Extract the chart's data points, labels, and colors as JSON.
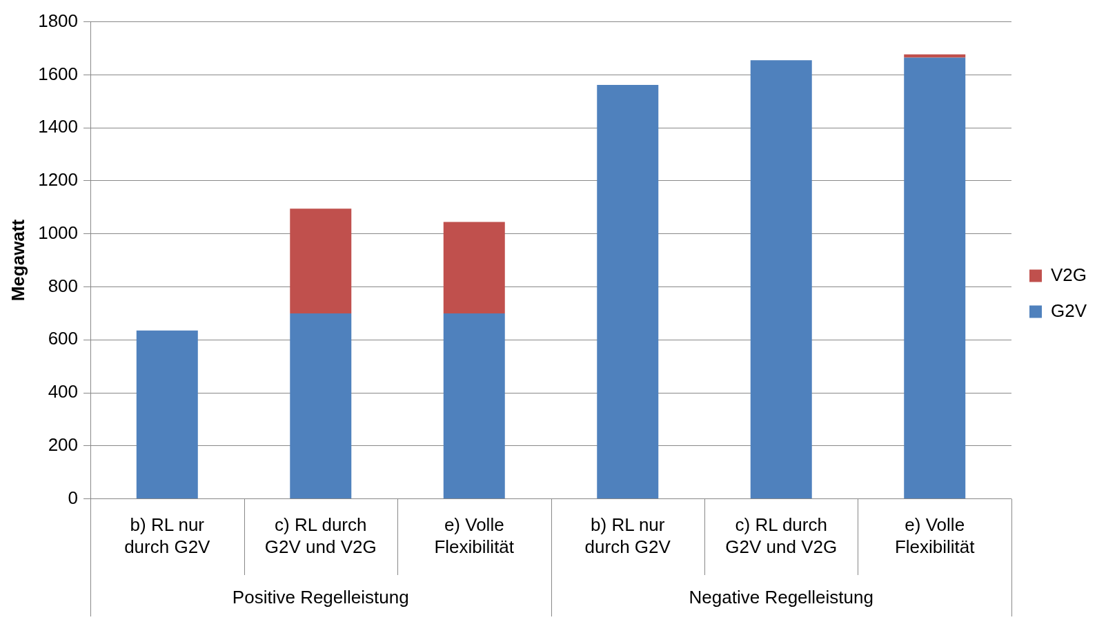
{
  "chart_data": {
    "type": "bar",
    "ylabel": "Megawatt",
    "categories": [
      "b) RL nur\ndurch G2V",
      "c) RL durch\nG2V und V2G",
      "e) Volle\nFlexibilität",
      "b) RL nur\ndurch G2V",
      "c) RL durch\nG2V und V2G",
      "e) Volle\nFlexibilität"
    ],
    "series": [
      {
        "name": "G2V",
        "color": "#4f81bd",
        "values": [
          635,
          700,
          700,
          1562,
          1655,
          1665
        ]
      },
      {
        "name": "V2G",
        "color": "#c0504d",
        "values": [
          0,
          395,
          345,
          0,
          0,
          12
        ]
      }
    ],
    "stacked": true,
    "ylim": [
      0,
      1800
    ],
    "yticks": [
      0,
      200,
      400,
      600,
      800,
      1000,
      1200,
      1400,
      1600,
      1800
    ],
    "grid": "y",
    "legend": "right",
    "annotations": [
      "Positive Regelleistung",
      "Negative Regelleistung"
    ]
  }
}
